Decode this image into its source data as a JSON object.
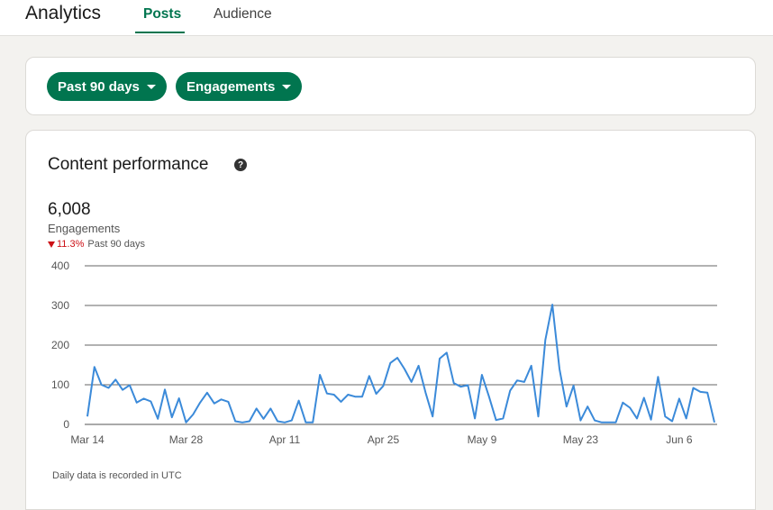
{
  "header": {
    "title": "Analytics",
    "tabs": [
      {
        "label": "Posts",
        "active": true
      },
      {
        "label": "Audience",
        "active": false
      }
    ]
  },
  "filters": {
    "date_range": "Past 90 days",
    "metric": "Engagements"
  },
  "performance": {
    "title": "Content performance",
    "help_icon": "question-mark-icon",
    "total": "6,008",
    "metric_label": "Engagements",
    "change": "11.3%",
    "change_direction": "down",
    "change_period": "Past 90 days",
    "footnote": "Daily data is recorded in UTC"
  },
  "colors": {
    "accent": "#01754f",
    "line": "#3b8ad9",
    "negative": "#cc1016"
  },
  "chart_data": {
    "type": "line",
    "series": [
      {
        "values": [
          20,
          145,
          100,
          92,
          113,
          87,
          99,
          55,
          65,
          58,
          14,
          88,
          18,
          66,
          5,
          25,
          55,
          80,
          53,
          63,
          57,
          8,
          5,
          8,
          40,
          14,
          40,
          8,
          5,
          10,
          60,
          5,
          5,
          125,
          78,
          75,
          57,
          75,
          70,
          70,
          122,
          77,
          97,
          155,
          168,
          140,
          107,
          148,
          80,
          20,
          166,
          181,
          104,
          95,
          99,
          15,
          125,
          70,
          11,
          15,
          85,
          111,
          107,
          148,
          20,
          213,
          302,
          140,
          45,
          98,
          10,
          45,
          10,
          5,
          5,
          5,
          55,
          42,
          15,
          67,
          12,
          120,
          20,
          8,
          65,
          15,
          92,
          82,
          80,
          5
        ]
      }
    ],
    "x_ticks": [
      "Mar 14",
      "Mar 28",
      "Apr 11",
      "Apr 25",
      "May 9",
      "May 23",
      "Jun 6"
    ],
    "y_ticks": [
      0,
      100,
      200,
      300,
      400
    ],
    "ylim": [
      0,
      400
    ],
    "grid": true
  }
}
